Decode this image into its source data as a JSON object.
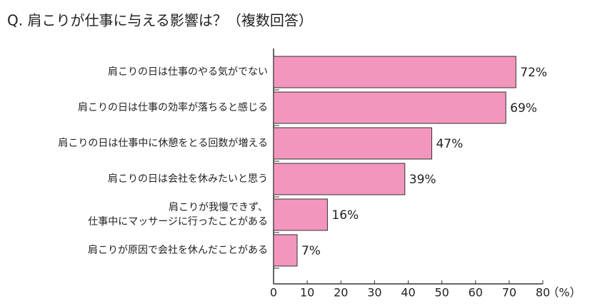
{
  "chart_data": {
    "type": "barh",
    "title": "Q. 肩こりが仕事に与える影響は？（複数回答）",
    "categories": [
      [
        "肩こりの日は仕事のやる気がでない"
      ],
      [
        "肩こりの日は仕事の効率が落ちると感じる"
      ],
      [
        "肩こりの日は仕事中に休憩をとる回数が増える"
      ],
      [
        "肩こりの日は会社を休みたいと思う"
      ],
      [
        "肩こりが我慢できず、",
        "仕事中にマッサージに行ったことがある"
      ],
      [
        "肩こりが原因で会社を休んだことがある"
      ]
    ],
    "values": [
      72,
      69,
      47,
      39,
      16,
      7
    ],
    "value_labels": [
      "72%",
      "69%",
      "47%",
      "39%",
      "16%",
      "7%"
    ],
    "color": "#f296be",
    "xlim": [
      0,
      80
    ],
    "xticks": [
      0,
      10,
      20,
      30,
      40,
      50,
      60,
      70,
      80
    ],
    "xlabel": "（%）"
  }
}
